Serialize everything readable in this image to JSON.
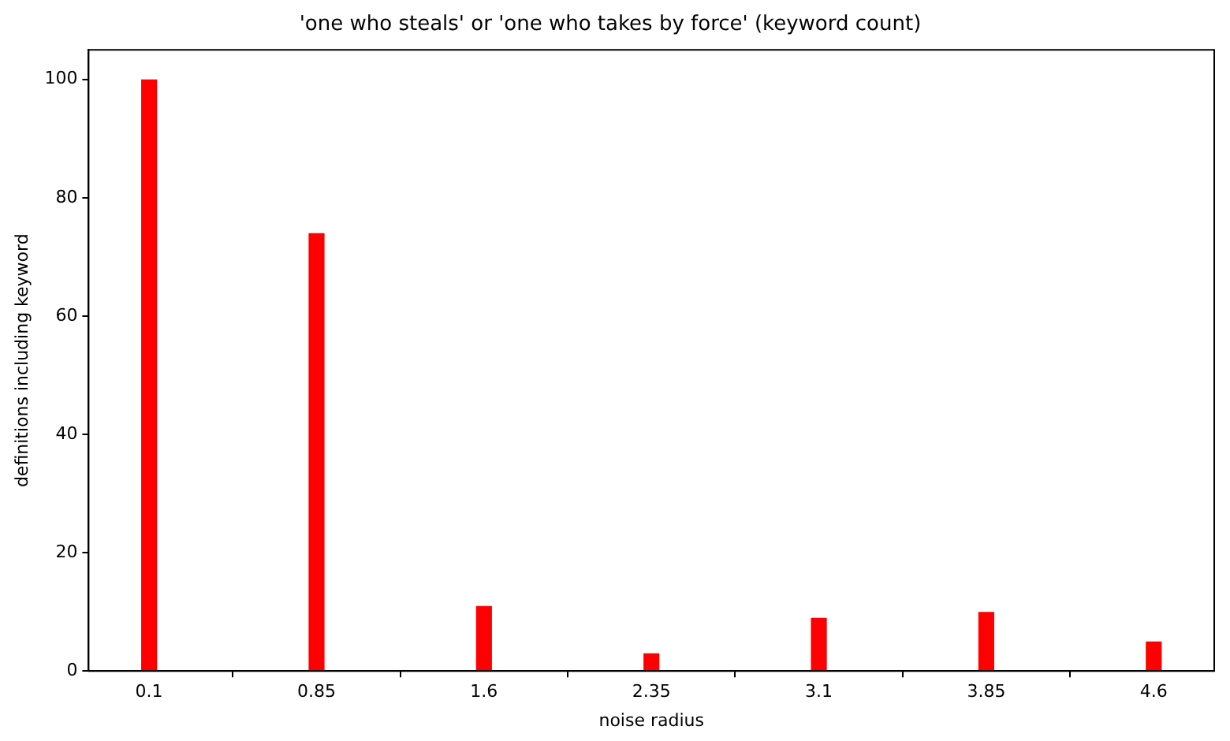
{
  "chart_data": {
    "type": "bar",
    "title": "'one who steals' or 'one who takes by force' (keyword count)",
    "xlabel": "noise radius",
    "ylabel": "definitions including keyword",
    "x": [
      0.1,
      0.85,
      1.6,
      2.35,
      3.1,
      3.85,
      4.6
    ],
    "values": [
      100,
      74,
      11,
      3,
      9,
      10,
      5
    ],
    "color": "#ff0000",
    "xlim": [
      -0.171,
      4.871
    ],
    "xticks": [
      0.1,
      0.85,
      1.6,
      2.35,
      3.1,
      3.85,
      4.6
    ],
    "ylim": [
      0,
      105
    ],
    "yticks": [
      0,
      20,
      40,
      60,
      80,
      100
    ],
    "grid": false,
    "legend": false
  }
}
